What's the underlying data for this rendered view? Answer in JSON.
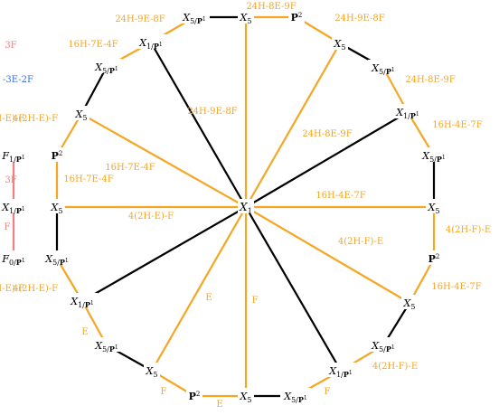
{
  "colors": {
    "black_edge": "#000000",
    "orange_edge": "#f5a623",
    "red_edge": "#f08080",
    "blue_text": "#3a6fd8"
  },
  "center": {
    "id": "c",
    "label": "X1"
  },
  "nodes": [
    {
      "id": "t1",
      "label": "X5/P1"
    },
    {
      "id": "t2",
      "label": "X5"
    },
    {
      "id": "t3",
      "label": "P2"
    },
    {
      "id": "r1",
      "label": "X5"
    },
    {
      "id": "r2",
      "label": "X5/P1"
    },
    {
      "id": "r3",
      "label": "X1/P1"
    },
    {
      "id": "r4",
      "label": "X5/P1"
    },
    {
      "id": "r5",
      "label": "X5"
    },
    {
      "id": "r6",
      "label": "P2"
    },
    {
      "id": "r7",
      "label": "X5"
    },
    {
      "id": "r8",
      "label": "X5/P1"
    },
    {
      "id": "b1",
      "label": "X1/P1"
    },
    {
      "id": "b2",
      "label": "X5/P1"
    },
    {
      "id": "b3",
      "label": "X5"
    },
    {
      "id": "b4",
      "label": "P2"
    },
    {
      "id": "b5",
      "label": "X5"
    },
    {
      "id": "l1",
      "label": "X5/P1"
    },
    {
      "id": "l2",
      "label": "X1/P1"
    },
    {
      "id": "l3",
      "label": "X5/P1"
    },
    {
      "id": "l4",
      "label": "X5"
    },
    {
      "id": "l5",
      "label": "P2"
    },
    {
      "id": "l6",
      "label": "X5"
    },
    {
      "id": "l7",
      "label": "X5/P1"
    },
    {
      "id": "l8",
      "label": "X1/P1"
    },
    {
      "id": "e1",
      "label": "F1/P1"
    },
    {
      "id": "e2",
      "label": "X1/P1"
    },
    {
      "id": "e3",
      "label": "F0/P1"
    }
  ],
  "edges": [
    {
      "from": "t1",
      "to": "t2",
      "color": "black",
      "label": ""
    },
    {
      "from": "t2",
      "to": "t3",
      "color": "orange",
      "label": "24H-8E-9F"
    },
    {
      "from": "t3",
      "to": "r1",
      "color": "orange",
      "label": "24H-9E-8F"
    },
    {
      "from": "r1",
      "to": "r2",
      "color": "black",
      "label": ""
    },
    {
      "from": "r2",
      "to": "r3",
      "color": "orange",
      "label": "24H-8E-9F"
    },
    {
      "from": "r3",
      "to": "r4",
      "color": "orange",
      "label": "16H-4E-7F"
    },
    {
      "from": "r4",
      "to": "r5",
      "color": "black",
      "label": ""
    },
    {
      "from": "r5",
      "to": "r6",
      "color": "orange",
      "label": "4(2H-F)-E"
    },
    {
      "from": "r6",
      "to": "r7",
      "color": "orange",
      "label": "16H-4E-7F"
    },
    {
      "from": "r7",
      "to": "r8",
      "color": "black",
      "label": ""
    },
    {
      "from": "r8",
      "to": "b1",
      "color": "orange",
      "label": "4(2H-F)-E"
    },
    {
      "from": "b1",
      "to": "b2",
      "color": "orange",
      "label": "F"
    },
    {
      "from": "b2",
      "to": "b3",
      "color": "black",
      "label": ""
    },
    {
      "from": "b3",
      "to": "b4",
      "color": "orange",
      "label": "E"
    },
    {
      "from": "b4",
      "to": "b5",
      "color": "orange",
      "label": "F"
    },
    {
      "from": "b5",
      "to": "l1",
      "color": "black",
      "label": ""
    },
    {
      "from": "l1",
      "to": "l2",
      "color": "orange",
      "label": "E"
    },
    {
      "from": "l2",
      "to": "l3",
      "color": "orange",
      "label": "4(2H-E)-F"
    },
    {
      "from": "l3",
      "to": "l4",
      "color": "black",
      "label": ""
    },
    {
      "from": "l4",
      "to": "l5",
      "color": "orange",
      "label": "16H-7E-4F"
    },
    {
      "from": "l5",
      "to": "l6",
      "color": "orange",
      "label": "4(2H-E)-F"
    },
    {
      "from": "l6",
      "to": "l7",
      "color": "black",
      "label": ""
    },
    {
      "from": "l7",
      "to": "l8",
      "color": "orange",
      "label": "16H-7E-4F"
    },
    {
      "from": "l8",
      "to": "t1",
      "color": "orange",
      "label": "24H-9E-8F"
    },
    {
      "from": "c",
      "to": "t2",
      "color": "orange",
      "label": ""
    },
    {
      "from": "c",
      "to": "r1",
      "color": "orange",
      "label": "24H-8E-9F"
    },
    {
      "from": "c",
      "to": "r3",
      "color": "black",
      "label": ""
    },
    {
      "from": "c",
      "to": "r5",
      "color": "orange",
      "label": "16H-4E-7F"
    },
    {
      "from": "c",
      "to": "r7",
      "color": "orange",
      "label": "4(2H-F)-E"
    },
    {
      "from": "c",
      "to": "b1",
      "color": "black",
      "label": ""
    },
    {
      "from": "c",
      "to": "b5",
      "color": "orange",
      "label": "F"
    },
    {
      "from": "c",
      "to": "b3",
      "color": "orange",
      "label": "E"
    },
    {
      "from": "c",
      "to": "l2",
      "color": "black",
      "label": ""
    },
    {
      "from": "c",
      "to": "l6",
      "color": "orange",
      "label": "4(2H-E)-F"
    },
    {
      "from": "c",
      "to": "l4",
      "color": "orange",
      "label": "16H-7E-4F"
    },
    {
      "from": "c",
      "to": "l8",
      "color": "black",
      "label": "24H-9E-8F"
    },
    {
      "from": "e1",
      "to": "e2",
      "color": "red",
      "label": ""
    },
    {
      "from": "e2",
      "to": "e3",
      "color": "red",
      "label": ""
    }
  ],
  "edge_fragments": [
    {
      "text": "3F",
      "color": "red"
    },
    {
      "text": "-3E-2F",
      "color": "blue"
    },
    {
      "text": "3F",
      "color": "red"
    },
    {
      "text": "F",
      "color": "red"
    },
    {
      "text": "4(2H-E)-F",
      "color": "orange"
    },
    {
      "text": "4(2H-E)-F",
      "color": "orange"
    }
  ]
}
